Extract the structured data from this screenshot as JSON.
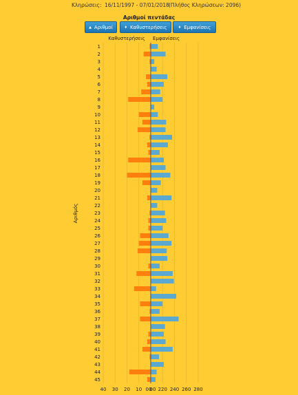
{
  "header": {
    "draws_label": "Κληρώσεις:",
    "date_range": "16/11/1997 - 07/01/2018",
    "count_text": "(Πλήθος Κληρώσεων: 2096)"
  },
  "buttons": [
    {
      "arrow": "▲",
      "label": "Αριθμοί"
    },
    {
      "arrow": "♦",
      "label": "Καθυστερήσεις"
    },
    {
      "arrow": "♦",
      "label": "Εμφανίσεις"
    }
  ],
  "colors": {
    "background": "#FFCC33",
    "delays": "#FF7F0E",
    "appearances": "#5BA8D0",
    "button": "#2A86C6"
  },
  "chart_data": {
    "type": "bar",
    "title": "Αριθμοί πεντάδας",
    "left_label": "Καθυστερήσεις",
    "right_label": "Εμφανίσεις",
    "ylabel": "Αριθμός",
    "categories": [
      "1",
      "2",
      "3",
      "4",
      "5",
      "6",
      "7",
      "8",
      "9",
      "10",
      "11",
      "12",
      "13",
      "14",
      "15",
      "16",
      "17",
      "18",
      "19",
      "20",
      "21",
      "22",
      "23",
      "24",
      "25",
      "26",
      "27",
      "28",
      "29",
      "30",
      "31",
      "32",
      "33",
      "34",
      "35",
      "36",
      "37",
      "38",
      "39",
      "40",
      "41",
      "42",
      "43",
      "44",
      "45"
    ],
    "series": [
      {
        "name": "Καθυστερήσεις",
        "side": "left",
        "xlim": [
          0,
          40
        ],
        "tick_labels": [
          "40",
          "30",
          "20",
          "10",
          "00"
        ],
        "values": [
          1,
          6,
          1,
          0,
          4,
          3,
          8,
          19,
          0,
          10,
          7,
          11,
          1,
          3,
          2,
          19,
          0,
          20,
          7,
          0,
          3,
          0,
          1,
          2,
          2,
          9,
          10,
          11,
          0,
          2,
          12,
          0,
          14,
          0,
          9,
          1,
          9,
          0,
          2,
          3,
          7,
          1,
          0,
          18,
          3
        ]
      },
      {
        "name": "Εμφανίσεις",
        "side": "right",
        "xlim": [
          200,
          280
        ],
        "tick_labels": [
          "00",
          "220",
          "240",
          "260",
          "280"
        ],
        "values": [
          212,
          225,
          206,
          210,
          228,
          222,
          216,
          220,
          206,
          212,
          226,
          225,
          236,
          229,
          215,
          222,
          225,
          233,
          217,
          211,
          235,
          211,
          224,
          226,
          220,
          230,
          235,
          227,
          228,
          215,
          237,
          239,
          209,
          243,
          220,
          215,
          247,
          224,
          222,
          225,
          237,
          214,
          222,
          210,
          208
        ]
      }
    ]
  }
}
